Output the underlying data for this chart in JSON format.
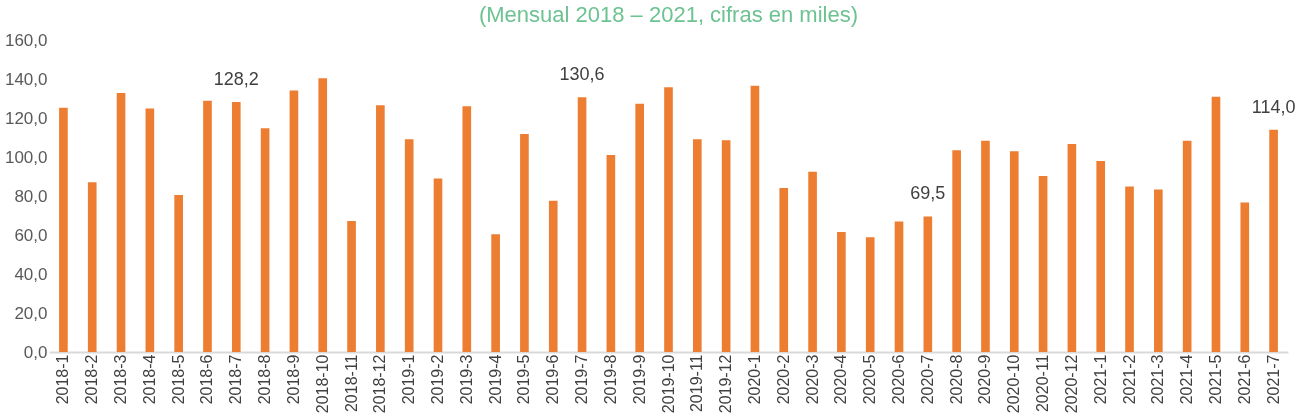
{
  "chart_data": {
    "type": "bar",
    "subtitle": "(Mensual 2018 – 2021, cifras en miles)",
    "categories": [
      "2018-1",
      "2018-2",
      "2018-3",
      "2018-4",
      "2018-5",
      "2018-6",
      "2018-7",
      "2018-8",
      "2018-9",
      "2018-10",
      "2018-11",
      "2018-12",
      "2019-1",
      "2019-2",
      "2019-3",
      "2019-4",
      "2019-5",
      "2019-6",
      "2019-7",
      "2019-8",
      "2019-9",
      "2019-10",
      "2019-11",
      "2019-12",
      "2020-1",
      "2020-2",
      "2020-3",
      "2020-4",
      "2020-5",
      "2020-6",
      "2020-7",
      "2020-8",
      "2020-9",
      "2020-10",
      "2020-11",
      "2020-12",
      "2021-1",
      "2021-2",
      "2021-3",
      "2021-4",
      "2021-5",
      "2021-6",
      "2021-7"
    ],
    "values": [
      125.2,
      87.1,
      132.8,
      124.9,
      80.5,
      128.8,
      128.2,
      114.8,
      134.1,
      140.4,
      67.2,
      126.5,
      109.1,
      89.0,
      126.0,
      60.4,
      111.8,
      77.6,
      130.6,
      101.0,
      127.3,
      135.8,
      109.1,
      108.6,
      136.6,
      84.1,
      92.5,
      61.5,
      58.8,
      66.9,
      69.5,
      103.4,
      108.3,
      102.9,
      90.3,
      106.7,
      98.0,
      84.9,
      83.3,
      108.3,
      130.9,
      76.7,
      114.0
    ],
    "value_labels": [
      null,
      null,
      null,
      null,
      null,
      null,
      "128,2",
      null,
      null,
      null,
      null,
      null,
      null,
      null,
      null,
      null,
      null,
      null,
      "130,6",
      null,
      null,
      null,
      null,
      null,
      null,
      null,
      null,
      null,
      null,
      null,
      "69,5",
      null,
      null,
      null,
      null,
      null,
      null,
      null,
      null,
      null,
      null,
      null,
      "114,0"
    ],
    "color": "#ed7d31",
    "ylim": [
      0,
      160
    ],
    "yticks": [
      {
        "value": 0,
        "label": "0,0"
      },
      {
        "value": 20,
        "label": "20,0"
      },
      {
        "value": 40,
        "label": "40,0"
      },
      {
        "value": 60,
        "label": "60,0"
      },
      {
        "value": 80,
        "label": "80,0"
      },
      {
        "value": 100,
        "label": "100,0"
      },
      {
        "value": 120,
        "label": "120,0"
      },
      {
        "value": 140,
        "label": "140,0"
      },
      {
        "value": 160,
        "label": "160,0"
      }
    ],
    "grid": false
  }
}
